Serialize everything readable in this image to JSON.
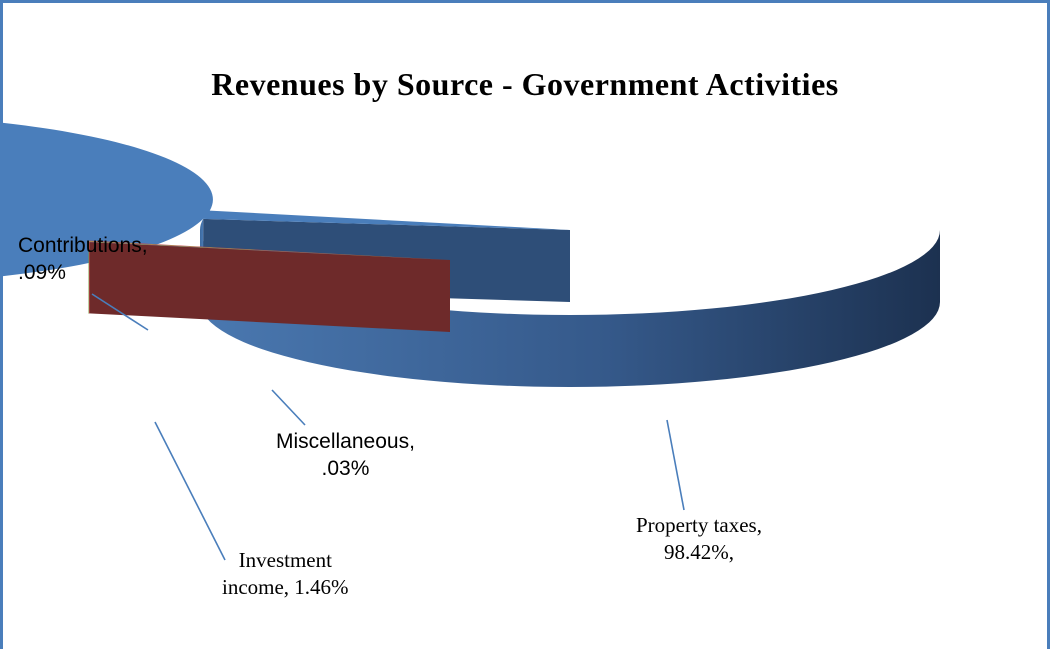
{
  "chart_data": {
    "type": "pie",
    "title": "Revenues by Source - Government Activities",
    "slices": [
      {
        "name": "Property taxes",
        "label_line1": "Property taxes,",
        "label_line2": "98.42%,",
        "value": 98.42,
        "color": "#4a7ebb"
      },
      {
        "name": "Investment income",
        "label_line1": "Investment",
        "label_line2": "income,  1.46%",
        "value": 1.46,
        "color": "#c0504d"
      },
      {
        "name": "Contributions",
        "label_line1": "Contributions,",
        "label_line2": ".09%",
        "value": 0.09,
        "color": "#9bbb59"
      },
      {
        "name": "Miscellaneous",
        "label_line1": "Miscellaneous,",
        "label_line2": ".03%",
        "value": 0.03,
        "color": "#8064a2"
      }
    ],
    "legend": false
  }
}
